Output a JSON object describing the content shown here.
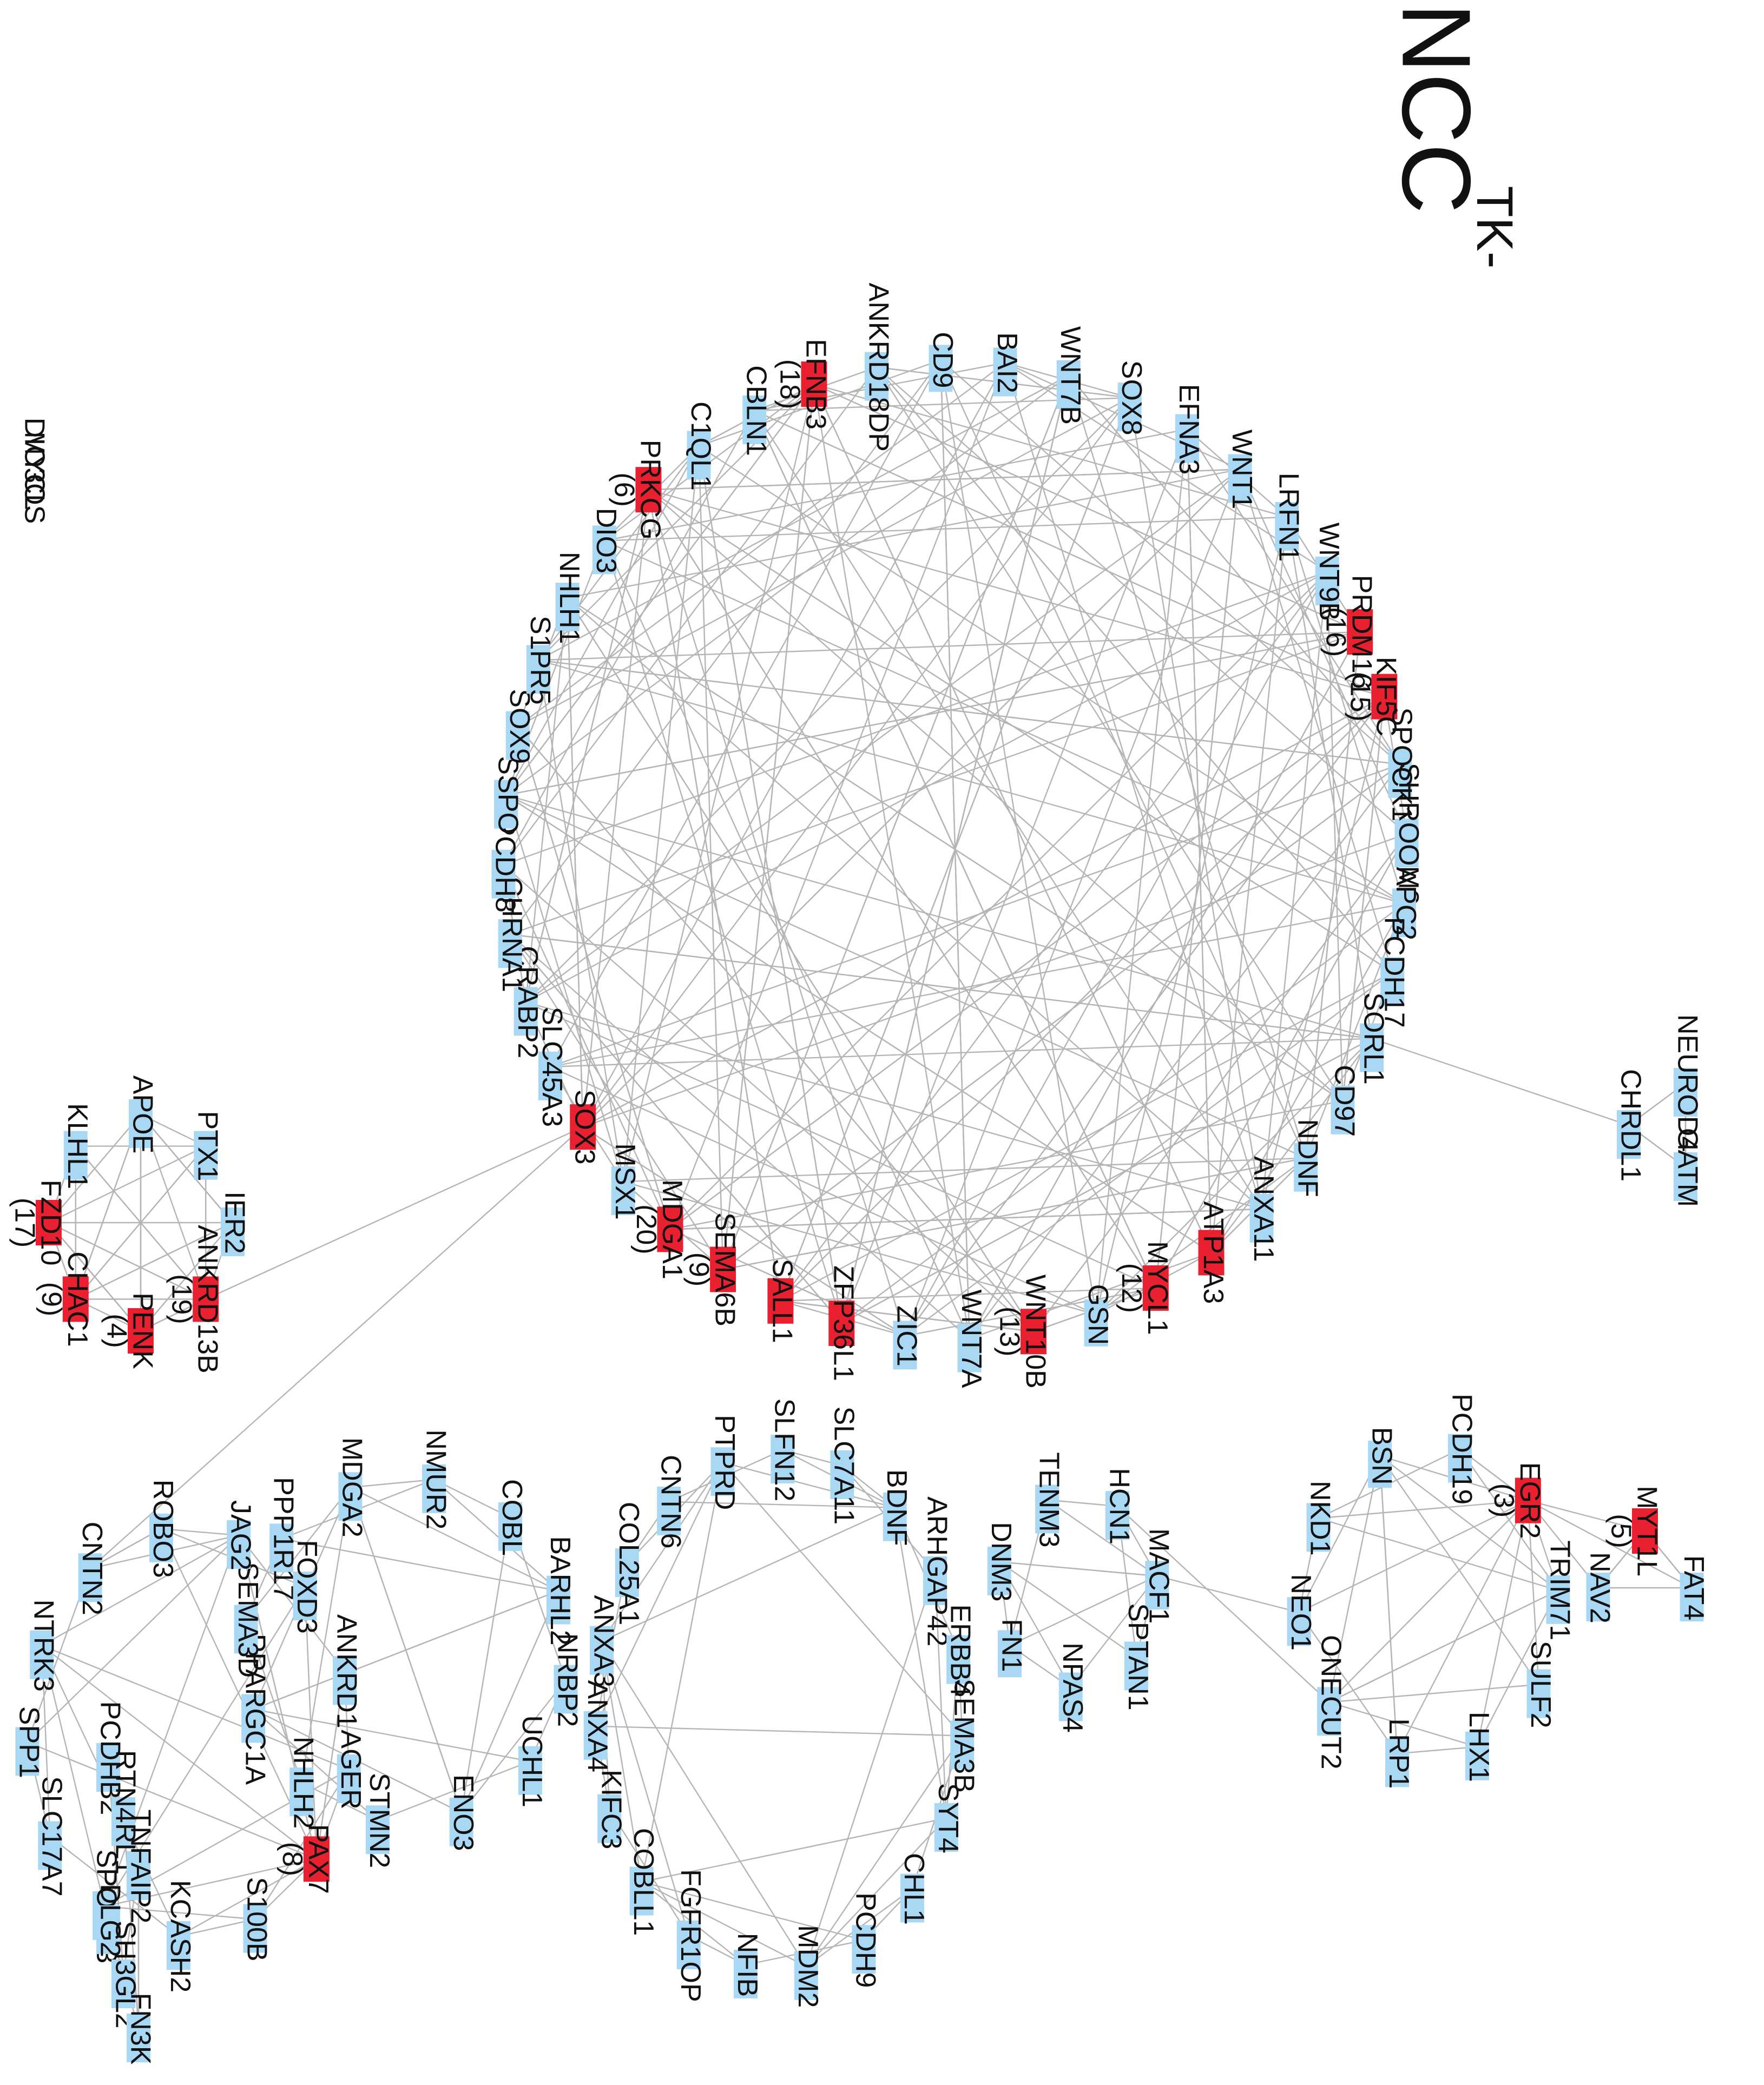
{
  "title": {
    "main": "NCC",
    "superscript": "TK-"
  },
  "clusters": [
    {
      "nodes": [
        {
          "label": "ANKRD18DP"
        },
        {
          "label": "CD9"
        },
        {
          "label": "BAI2"
        },
        {
          "label": "WNT7B"
        },
        {
          "label": "SOX8"
        },
        {
          "label": "EFNA3"
        },
        {
          "label": "WNT1"
        },
        {
          "label": "LRFN1"
        },
        {
          "label": "WNT9B"
        },
        {
          "label": "PRDM16",
          "hub": true,
          "count": "(16)"
        },
        {
          "label": "KIF5C",
          "hub": true,
          "count": "(15)"
        },
        {
          "label": "SPOCK1"
        },
        {
          "label": "SHROOM3"
        },
        {
          "label": "APC2"
        },
        {
          "label": "PCDH17"
        },
        {
          "label": "SORL1"
        },
        {
          "label": "CD97"
        },
        {
          "label": "NDNF"
        },
        {
          "label": "ANXA11"
        },
        {
          "label": "ATP1A3",
          "hub": true
        },
        {
          "label": "MYCL1",
          "hub": true,
          "count": "(12)"
        },
        {
          "label": "GSN"
        },
        {
          "label": "WNT10B",
          "hub": true,
          "count": "(13)"
        },
        {
          "label": "WNT7A"
        },
        {
          "label": "ZIC1"
        },
        {
          "label": "ZFP36L1",
          "hub": true
        },
        {
          "label": "SALL1",
          "hub": true
        },
        {
          "label": "SEMA6B",
          "hub": true,
          "count": "(9)"
        },
        {
          "label": "MDGA1",
          "hub": true,
          "count": "(20)"
        },
        {
          "label": "MSX1"
        },
        {
          "label": "SOX3",
          "hub": true
        },
        {
          "label": "SLC45A3"
        },
        {
          "label": "CRABP2"
        },
        {
          "label": "CHRNA1"
        },
        {
          "label": "PCDH8"
        },
        {
          "label": "SSPO"
        },
        {
          "label": "SOX9"
        },
        {
          "label": "S1PR5"
        },
        {
          "label": "NHLH1"
        },
        {
          "label": "DIO3"
        },
        {
          "label": "PRKCG",
          "hub": true,
          "count": "(6)"
        },
        {
          "label": "C1QL1"
        },
        {
          "label": "CBLN1"
        },
        {
          "label": "EFNB3",
          "hub": true,
          "count": "(18)"
        }
      ]
    },
    {
      "nodes": [
        {
          "label": "NEUROD4"
        },
        {
          "label": "GATM"
        },
        {
          "label": "CHRDL1"
        }
      ]
    },
    {
      "nodes": [
        {
          "label": "APOE"
        },
        {
          "label": "PTX1"
        },
        {
          "label": "IER2"
        },
        {
          "label": "ANKRD13B",
          "hub": true,
          "count": "(19)"
        },
        {
          "label": "PENK",
          "hub": true,
          "count": "(4)"
        },
        {
          "label": "CHAC1",
          "hub": true,
          "count": "(9)"
        },
        {
          "label": "FZD10",
          "hub": true,
          "count": "(17)"
        },
        {
          "label": "KLHL1"
        }
      ]
    },
    {
      "nodes": [
        {
          "label": "MYT1L",
          "hub": true,
          "count": "(5)"
        },
        {
          "label": "FAT4"
        },
        {
          "label": "NAV2"
        }
      ]
    },
    {
      "nodes": [
        {
          "label": "EGR2",
          "hub": true,
          "count": "(3)"
        },
        {
          "label": "TRIM71"
        },
        {
          "label": "SULF2"
        },
        {
          "label": "LHX1"
        },
        {
          "label": "LRP1"
        },
        {
          "label": "ONECUT2"
        },
        {
          "label": "NEO1"
        },
        {
          "label": "NKD1"
        },
        {
          "label": "BSN"
        },
        {
          "label": "PCDH19"
        }
      ]
    },
    {
      "nodes": [
        {
          "label": "HCN1"
        },
        {
          "label": "MACF1"
        },
        {
          "label": "SPTAN1"
        },
        {
          "label": "NPAS4"
        },
        {
          "label": "FN1"
        },
        {
          "label": "DNM3"
        },
        {
          "label": "TENM3"
        }
      ]
    },
    {
      "nodes": [
        {
          "label": "SLC7A11"
        },
        {
          "label": "BDNF"
        },
        {
          "label": "ARHGAP42"
        },
        {
          "label": "ERBB4"
        },
        {
          "label": "SEMA3B"
        },
        {
          "label": "SYT4"
        },
        {
          "label": "CHL1"
        },
        {
          "label": "PCDH9"
        },
        {
          "label": "MDM2"
        },
        {
          "label": "NFIB"
        },
        {
          "label": "FGFR1OP"
        },
        {
          "label": "COBLL1"
        },
        {
          "label": "KIFC3"
        },
        {
          "label": "ANXA4"
        },
        {
          "label": "ANXA3"
        },
        {
          "label": "COL25A1"
        },
        {
          "label": "CNTN6"
        },
        {
          "label": "PTPRD"
        },
        {
          "label": "SLFN12"
        }
      ]
    },
    {
      "nodes": [
        {
          "label": "NMUR2"
        },
        {
          "label": "COBL"
        },
        {
          "label": "BARHL2"
        },
        {
          "label": "NRBP2"
        },
        {
          "label": "UCHL1"
        },
        {
          "label": "ENO3"
        },
        {
          "label": "STMN2"
        },
        {
          "label": "NHLH2"
        },
        {
          "label": "PPARGC1A"
        },
        {
          "label": "SEMA3D"
        },
        {
          "label": "PPP1R17"
        },
        {
          "label": "MDGA2"
        }
      ]
    },
    {
      "nodes": [
        {
          "label": "ROBO3"
        },
        {
          "label": "JAG2"
        },
        {
          "label": "FOXD3"
        },
        {
          "label": "ANKRD1"
        },
        {
          "label": "AGER"
        },
        {
          "label": "PAX7",
          "hub": true,
          "count": "(8)"
        },
        {
          "label": "S100B"
        },
        {
          "label": "KCASH2"
        },
        {
          "label": "SPOCK3"
        },
        {
          "label": "SLC17A7"
        },
        {
          "label": "SPP1"
        },
        {
          "label": "NTRK3"
        },
        {
          "label": "CNTN2"
        }
      ]
    },
    {
      "nodes": [
        {
          "label": "PCDHB2"
        },
        {
          "label": "RTN4RL1"
        },
        {
          "label": "TNFAIP2"
        },
        {
          "label": "DLG2"
        },
        {
          "label": "SH3GL2"
        },
        {
          "label": "FN3K"
        }
      ]
    },
    {
      "nodes": [
        {
          "label": "MYCL"
        },
        {
          "label": "DIO3OS"
        }
      ]
    }
  ]
}
